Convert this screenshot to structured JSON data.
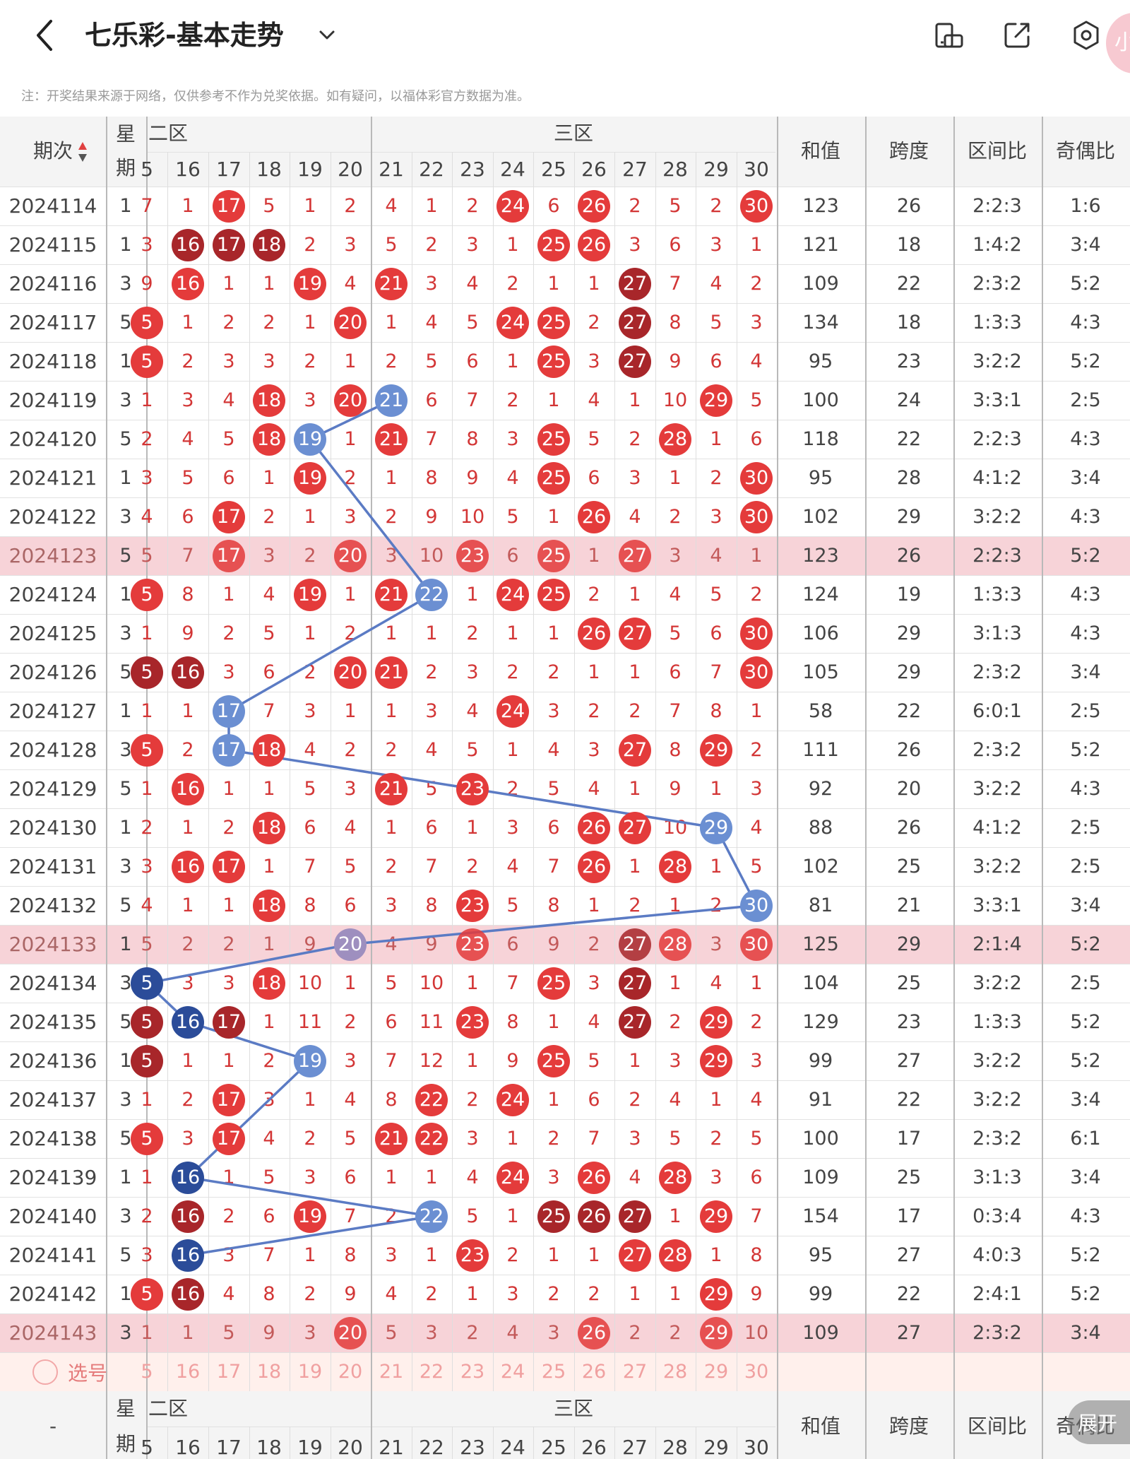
{
  "header": {
    "title": "七乐彩-基本走势",
    "icons": [
      "back-icon",
      "chevron-down-icon",
      "rotate-screen-icon",
      "share-icon",
      "settings-icon"
    ],
    "avatar_text": "小"
  },
  "note": "注：开奖结果来源于网络，仅供参考不作为兑奖依据。如有疑问，以福体彩官方数据为准。",
  "table": {
    "col_period": "期次",
    "col_week": "星期",
    "zone2": "二区",
    "zone3": "三区",
    "col_sum": "和值",
    "col_span": "跨度",
    "col_ratio": "区间比",
    "col_oddeven": "奇偶比",
    "numbers": [
      "5",
      "16",
      "17",
      "18",
      "19",
      "20",
      "21",
      "22",
      "23",
      "24",
      "25",
      "26",
      "27",
      "28",
      "29",
      "30"
    ],
    "rows": [
      {
        "p": "2024114",
        "w": "1",
        "v": [
          "7",
          "1",
          "17",
          "5",
          "1",
          "2",
          "4",
          "1",
          "2",
          "24",
          "6",
          "26",
          "2",
          "5",
          "2",
          "30"
        ],
        "s": "123",
        "k": "26",
        "r": "2:2:3",
        "o": "1:6",
        "b": {
          "2": "r",
          "9": "r",
          "11": "r",
          "15": "r"
        }
      },
      {
        "p": "2024115",
        "w": "1",
        "v": [
          "3",
          "16",
          "17",
          "18",
          "2",
          "3",
          "5",
          "2",
          "3",
          "1",
          "25",
          "26",
          "3",
          "6",
          "3",
          "1"
        ],
        "s": "121",
        "k": "18",
        "r": "1:4:2",
        "o": "3:4",
        "b": {
          "1": "d",
          "2": "d",
          "3": "d",
          "10": "r",
          "11": "r"
        }
      },
      {
        "p": "2024116",
        "w": "3",
        "v": [
          "9",
          "16",
          "1",
          "1",
          "19",
          "4",
          "21",
          "3",
          "4",
          "2",
          "1",
          "1",
          "27",
          "7",
          "4",
          "2"
        ],
        "s": "109",
        "k": "22",
        "r": "2:3:2",
        "o": "5:2",
        "b": {
          "1": "r",
          "4": "r",
          "6": "r",
          "12": "d"
        }
      },
      {
        "p": "2024117",
        "w": "5",
        "v": "5|1|2|2|1|20|1|4|5|24|25|2|27|8|5|3",
        "s": "134",
        "k": "18",
        "r": "1:3:3",
        "o": "4:3",
        "b": {
          "0": "r",
          "5": "r",
          "9": "r",
          "10": "r",
          "12": "d"
        }
      },
      {
        "p": "2024118",
        "w": "1",
        "v": "5|2|3|3|2|1|2|5|6|1|25|3|27|9|6|4",
        "s": "95",
        "k": "23",
        "r": "3:2:2",
        "o": "5:2",
        "b": {
          "0": "r",
          "10": "r",
          "12": "d"
        }
      },
      {
        "p": "2024119",
        "w": "3",
        "v": "1|3|4|18|3|20|21|6|7|2|1|4|1|10|29|5",
        "s": "100",
        "k": "24",
        "r": "3:3:1",
        "o": "2:5",
        "b": {
          "3": "r",
          "5": "r",
          "6": "b",
          "14": "r"
        }
      },
      {
        "p": "2024120",
        "w": "5",
        "v": "2|4|5|18|19|1|21|7|8|3|25|5|2|28|1|6",
        "s": "118",
        "k": "22",
        "r": "2:2:3",
        "o": "4:3",
        "b": {
          "3": "r",
          "4": "b",
          "6": "r",
          "10": "r",
          "13": "r"
        }
      },
      {
        "p": "2024121",
        "w": "1",
        "v": "3|5|6|1|19|2|1|8|9|4|25|6|3|1|2|30",
        "s": "95",
        "k": "28",
        "r": "4:1:2",
        "o": "3:4",
        "b": {
          "4": "r",
          "10": "r",
          "15": "r"
        }
      },
      {
        "p": "2024122",
        "w": "3",
        "v": "4|6|17|2|1|3|2|9|10|5|1|26|4|2|3|30",
        "s": "102",
        "k": "29",
        "r": "3:2:2",
        "o": "4:3",
        "b": {
          "2": "r",
          "11": "r",
          "15": "r"
        }
      },
      {
        "p": "2024123",
        "w": "5",
        "v": "5|7|17|3|2|20|3|10|23|6|25|1|27|3|4|1",
        "s": "123",
        "k": "26",
        "r": "2:2:3",
        "o": "5:2",
        "b": {
          "2": "r",
          "5": "r",
          "8": "r",
          "10": "r",
          "12": "r"
        },
        "hl": true
      },
      {
        "p": "2024124",
        "w": "1",
        "v": "5|8|1|4|19|1|21|22|1|24|25|2|1|4|5|2",
        "s": "124",
        "k": "19",
        "r": "1:3:3",
        "o": "4:3",
        "b": {
          "0": "r",
          "4": "r",
          "6": "r",
          "7": "b",
          "9": "r",
          "10": "r"
        }
      },
      {
        "p": "2024125",
        "w": "3",
        "v": "1|9|2|5|1|2|1|1|2|1|1|26|27|5|6|30",
        "s": "106",
        "k": "29",
        "r": "3:1:3",
        "o": "4:3",
        "b": {
          "11": "r",
          "12": "r",
          "15": "r"
        }
      },
      {
        "p": "2024126",
        "w": "5",
        "v": "5|16|3|6|2|20|21|2|3|2|2|1|1|6|7|30",
        "s": "105",
        "k": "29",
        "r": "2:3:2",
        "o": "3:4",
        "b": {
          "0": "d",
          "1": "d",
          "5": "r",
          "6": "r",
          "15": "r"
        }
      },
      {
        "p": "2024127",
        "w": "1",
        "v": "1|1|17|7|3|1|1|3|4|24|3|2|2|7|8|1",
        "s": "58",
        "k": "22",
        "r": "6:0:1",
        "o": "2:5",
        "b": {
          "2": "b",
          "9": "r"
        }
      },
      {
        "p": "2024128",
        "w": "3",
        "v": "5|2|17|18|4|2|2|4|5|1|4|3|27|8|29|2",
        "s": "111",
        "k": "26",
        "r": "2:3:2",
        "o": "5:2",
        "b": {
          "0": "r",
          "2": "b",
          "3": "r",
          "12": "r",
          "14": "r"
        }
      },
      {
        "p": "2024129",
        "w": "5",
        "v": "1|16|1|1|5|3|21|5|23|2|5|4|1|9|1|3",
        "s": "92",
        "k": "20",
        "r": "3:2:2",
        "o": "4:3",
        "b": {
          "1": "r",
          "6": "r",
          "8": "r"
        }
      },
      {
        "p": "2024130",
        "w": "1",
        "v": "2|1|2|18|6|4|1|6|1|3|6|26|27|10|29|4",
        "s": "88",
        "k": "26",
        "r": "4:1:2",
        "o": "2:5",
        "b": {
          "3": "r",
          "11": "r",
          "12": "r",
          "14": "b"
        }
      },
      {
        "p": "2024131",
        "w": "3",
        "v": "3|16|17|1|7|5|2|7|2|4|7|26|1|28|1|5",
        "s": "102",
        "k": "25",
        "r": "3:2:2",
        "o": "2:5",
        "b": {
          "1": "r",
          "2": "r",
          "11": "r",
          "13": "r"
        }
      },
      {
        "p": "2024132",
        "w": "5",
        "v": "4|1|1|18|8|6|3|8|23|5|8|1|2|1|2|30",
        "s": "81",
        "k": "21",
        "r": "3:3:1",
        "o": "3:4",
        "b": {
          "3": "r",
          "8": "r",
          "15": "b"
        }
      },
      {
        "p": "2024133",
        "w": "1",
        "v": "5|2|2|1|9|20|4|9|23|6|9|2|27|28|3|30",
        "s": "125",
        "k": "29",
        "r": "2:1:4",
        "o": "5:2",
        "b": {
          "5": "p",
          "8": "r",
          "12": "d",
          "13": "r",
          "15": "r"
        },
        "hl": true
      },
      {
        "p": "2024134",
        "w": "3",
        "v": "5|3|3|18|10|1|5|10|1|7|25|3|27|1|4|1",
        "s": "104",
        "k": "25",
        "r": "3:2:2",
        "o": "2:5",
        "b": {
          "0": "db",
          "3": "r",
          "10": "r",
          "12": "d"
        }
      },
      {
        "p": "2024135",
        "w": "5",
        "v": "5|16|17|1|11|2|6|11|23|8|1|4|27|2|29|2",
        "s": "129",
        "k": "23",
        "r": "1:3:3",
        "o": "5:2",
        "b": {
          "0": "d",
          "1": "db",
          "2": "d",
          "8": "r",
          "12": "d",
          "14": "r"
        }
      },
      {
        "p": "2024136",
        "w": "1",
        "v": "5|1|1|2|19|3|7|12|1|9|25|5|1|3|29|3",
        "s": "99",
        "k": "27",
        "r": "3:2:2",
        "o": "5:2",
        "b": {
          "0": "d",
          "4": "b",
          "10": "r",
          "14": "r"
        }
      },
      {
        "p": "2024137",
        "w": "3",
        "v": "1|2|17|3|1|4|8|22|2|24|1|6|2|4|1|4",
        "s": "91",
        "k": "22",
        "r": "3:2:2",
        "o": "3:4",
        "b": {
          "2": "r",
          "7": "r",
          "9": "r"
        }
      },
      {
        "p": "2024138",
        "w": "5",
        "v": "5|3|17|4|2|5|21|22|3|1|2|7|3|5|2|5",
        "s": "100",
        "k": "17",
        "r": "2:3:2",
        "o": "6:1",
        "b": {
          "0": "r",
          "2": "r",
          "6": "r",
          "7": "r"
        }
      },
      {
        "p": "2024139",
        "w": "1",
        "v": "1|16|1|5|3|6|1|1|4|24|3|26|4|28|3|6",
        "s": "109",
        "k": "25",
        "r": "3:1:3",
        "o": "3:4",
        "b": {
          "1": "db",
          "9": "r",
          "11": "r",
          "13": "r"
        }
      },
      {
        "p": "2024140",
        "w": "3",
        "v": "2|16|2|6|19|7|2|22|5|1|25|26|27|1|29|7",
        "s": "154",
        "k": "17",
        "r": "0:3:4",
        "o": "4:3",
        "b": {
          "1": "d",
          "4": "r",
          "7": "b",
          "10": "d",
          "11": "d",
          "12": "d",
          "14": "r"
        }
      },
      {
        "p": "2024141",
        "w": "5",
        "v": "3|16|3|7|1|8|3|1|23|2|1|1|27|28|1|8",
        "s": "95",
        "k": "27",
        "r": "4:0:3",
        "o": "5:2",
        "b": {
          "1": "db",
          "8": "r",
          "12": "r",
          "13": "r"
        }
      },
      {
        "p": "2024142",
        "w": "1",
        "v": "5|16|4|8|2|9|4|2|1|3|2|2|1|1|29|9",
        "s": "99",
        "k": "22",
        "r": "2:4:1",
        "o": "5:2",
        "b": {
          "0": "r",
          "1": "d",
          "14": "r"
        }
      },
      {
        "p": "2024143",
        "w": "3",
        "v": "1|1|5|9|3|20|5|3|2|4|3|26|2|2|29|10",
        "s": "109",
        "k": "27",
        "r": "2:3:2",
        "o": "3:4",
        "b": {
          "5": "r",
          "11": "r",
          "14": "r"
        },
        "hl": true
      }
    ],
    "pick_label": "选号",
    "footer_first": "-"
  },
  "expand_label": "展开"
}
